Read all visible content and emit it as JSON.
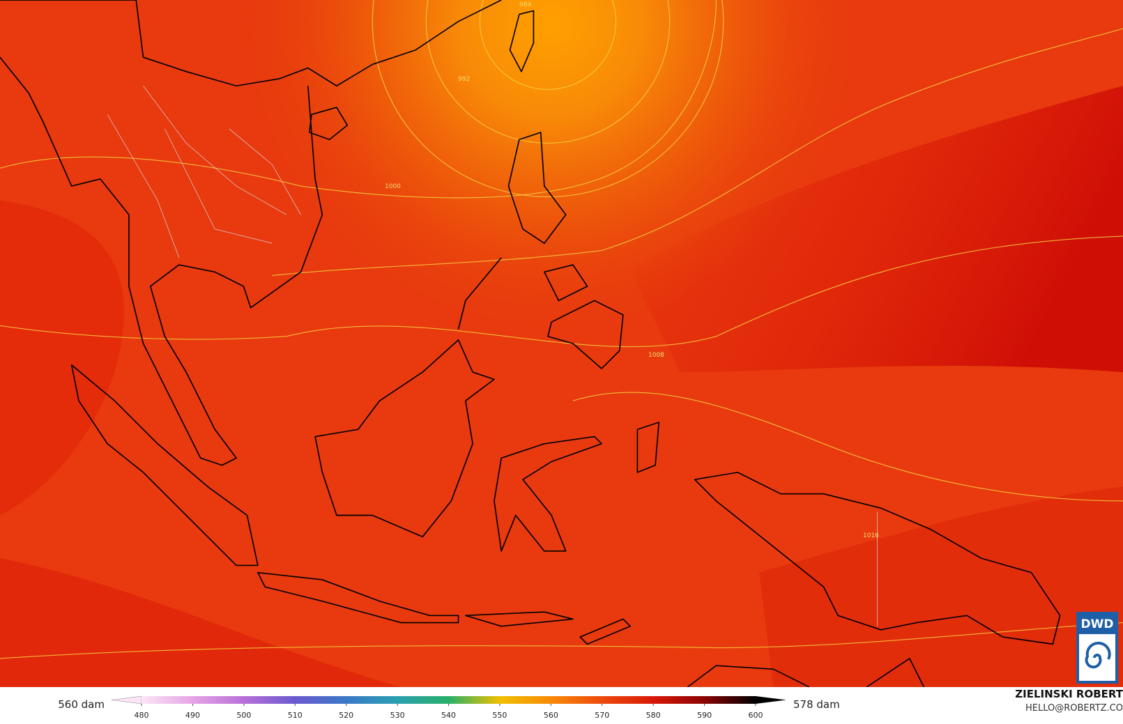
{
  "map": {
    "isobar_labels": [
      "984",
      "992",
      "1000",
      "1008",
      "1016"
    ]
  },
  "legend": {
    "left_label": "560 dam",
    "right_label": "578 dam",
    "ticks": [
      480,
      490,
      500,
      510,
      520,
      530,
      540,
      550,
      560,
      570,
      580,
      590,
      600
    ],
    "colors": [
      "#fbe6f6",
      "#e6a4e6",
      "#b870d8",
      "#6a5ad0",
      "#3a78c8",
      "#2aa0b0",
      "#28b068",
      "#f0c000",
      "#f88a08",
      "#ee4a0c",
      "#d81808",
      "#8a0404",
      "#000000"
    ]
  },
  "credit": {
    "author": "ZIELINSKI ROBERT",
    "email": "HELLO@ROBERTZ.CO"
  },
  "logo": "DWD"
}
